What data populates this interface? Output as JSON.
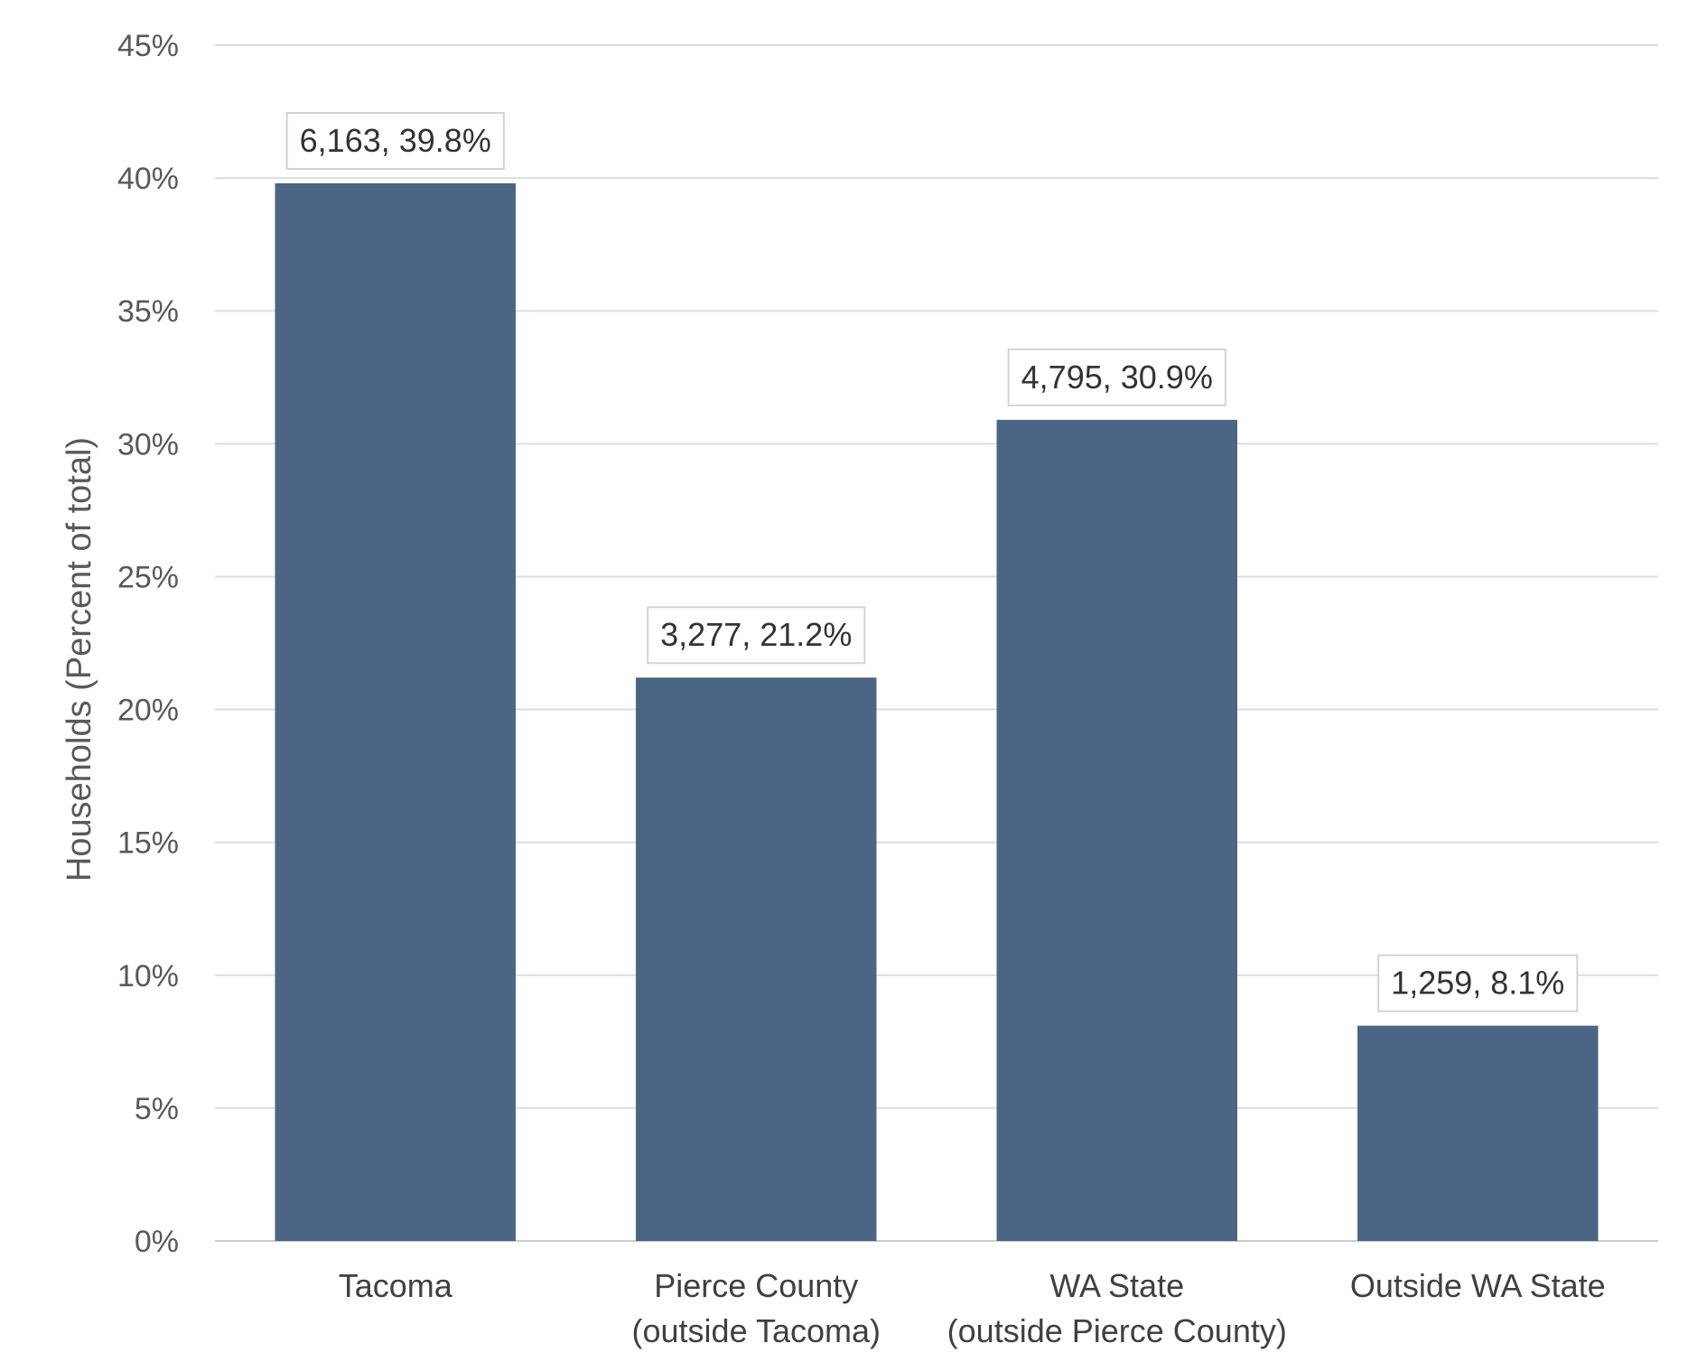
{
  "chart_data": {
    "type": "bar",
    "title": "",
    "xlabel": "",
    "ylabel": "Households (Percent of total)",
    "ylim": [
      0,
      45
    ],
    "yticks": [
      0,
      5,
      10,
      15,
      20,
      25,
      30,
      35,
      40,
      45
    ],
    "ytick_labels": [
      "0%",
      "5%",
      "10%",
      "15%",
      "20%",
      "25%",
      "30%",
      "35%",
      "40%",
      "45%"
    ],
    "grid": true,
    "legend": "none",
    "bar_color": "#4b6584",
    "categories": [
      [
        "Tacoma"
      ],
      [
        "Pierce County",
        "(outside Tacoma)"
      ],
      [
        "WA State",
        "(outside Pierce County)"
      ],
      [
        "Outside WA State"
      ]
    ],
    "values": [
      39.8,
      21.2,
      30.9,
      8.1
    ],
    "counts": [
      6163,
      3277,
      4795,
      1259
    ],
    "data_labels": [
      "6,163, 39.8%",
      "3,277, 21.2%",
      "4,795, 30.9%",
      "1,259, 8.1%"
    ]
  }
}
